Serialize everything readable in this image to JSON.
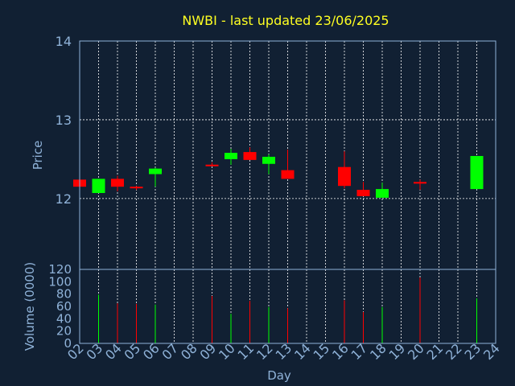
{
  "chart_data": [
    {
      "type": "candlestick",
      "title": "NWBI - last updated 23/06/2025",
      "ylabel": "Price",
      "ylim": [
        11.1,
        14
      ],
      "yticks": [
        "12",
        "13",
        "14"
      ],
      "colors": {
        "up": "#00ff00",
        "down": "#ff0000",
        "background": "#112033",
        "text": "#8fb2d8",
        "title": "#ffff22"
      },
      "candles": [
        {
          "day": "02",
          "open": 12.24,
          "close": 12.15,
          "high": 12.24,
          "low": 12.15
        },
        {
          "day": "03",
          "open": 12.07,
          "close": 12.25,
          "high": 12.25,
          "low": 12.07
        },
        {
          "day": "04",
          "open": 12.25,
          "close": 12.15,
          "high": 12.29,
          "low": 12.09
        },
        {
          "day": "05",
          "open": 12.15,
          "close": 12.13,
          "high": 12.16,
          "low": 12.11
        },
        {
          "day": "06",
          "open": 12.31,
          "close": 12.38,
          "high": 12.39,
          "low": 12.15
        },
        {
          "day": "09",
          "open": 12.43,
          "close": 12.42,
          "high": 12.46,
          "low": 12.42
        },
        {
          "day": "10",
          "open": 12.5,
          "close": 12.58,
          "high": 12.63,
          "low": 12.43
        },
        {
          "day": "11",
          "open": 12.59,
          "close": 12.49,
          "high": 12.65,
          "low": 12.49
        },
        {
          "day": "12",
          "open": 12.44,
          "close": 12.53,
          "high": 12.56,
          "low": 12.31
        },
        {
          "day": "13",
          "open": 12.36,
          "close": 12.25,
          "high": 12.62,
          "low": 12.25
        },
        {
          "day": "16",
          "open": 12.4,
          "close": 12.16,
          "high": 12.6,
          "low": 12.13
        },
        {
          "day": "17",
          "open": 12.11,
          "close": 12.03,
          "high": 12.21,
          "low": 12.03
        },
        {
          "day": "18",
          "open": 12.01,
          "close": 12.12,
          "high": 12.2,
          "low": 12.01
        },
        {
          "day": "20",
          "open": 12.21,
          "close": 12.19,
          "high": 12.24,
          "low": 12.11
        },
        {
          "day": "23",
          "open": 12.12,
          "close": 12.54,
          "high": 12.54,
          "low": 12.12
        }
      ]
    },
    {
      "type": "bar",
      "ylabel": "Volume (0000)",
      "xlabel": "Day",
      "ylim": [
        0,
        120
      ],
      "yticks": [
        "0",
        "20",
        "40",
        "60",
        "80",
        "100",
        "120"
      ],
      "categories": [
        "02",
        "03",
        "04",
        "05",
        "06",
        "07",
        "08",
        "09",
        "10",
        "11",
        "12",
        "13",
        "14",
        "15",
        "16",
        "17",
        "18",
        "19",
        "20",
        "21",
        "22",
        "23",
        "24"
      ],
      "values": [
        {
          "day": "03",
          "volume": 79,
          "direction": "up"
        },
        {
          "day": "04",
          "volume": 65,
          "direction": "down"
        },
        {
          "day": "05",
          "volume": 64,
          "direction": "down"
        },
        {
          "day": "06",
          "volume": 63,
          "direction": "up"
        },
        {
          "day": "09",
          "volume": 77,
          "direction": "down"
        },
        {
          "day": "10",
          "volume": 48,
          "direction": "up"
        },
        {
          "day": "11",
          "volume": 69,
          "direction": "down"
        },
        {
          "day": "12",
          "volume": 59,
          "direction": "up"
        },
        {
          "day": "13",
          "volume": 57,
          "direction": "down"
        },
        {
          "day": "16",
          "volume": 70,
          "direction": "down"
        },
        {
          "day": "17",
          "volume": 51,
          "direction": "down"
        },
        {
          "day": "18",
          "volume": 59,
          "direction": "up"
        },
        {
          "day": "20",
          "volume": 107,
          "direction": "down"
        },
        {
          "day": "23",
          "volume": 73,
          "direction": "up"
        }
      ]
    }
  ]
}
